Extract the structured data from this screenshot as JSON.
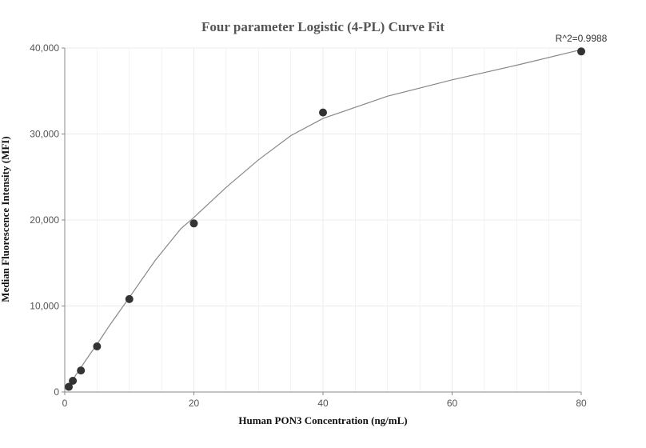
{
  "chart_data": {
    "type": "scatter",
    "title": "Four parameter Logistic (4-PL) Curve Fit",
    "xlabel": "Human PON3 Concentration (ng/mL)",
    "ylabel": "Median Fluorescence Intensity (MFI)",
    "xlim": [
      0,
      80
    ],
    "ylim": [
      0,
      40000
    ],
    "x_ticks": [
      0,
      20,
      40,
      60,
      80
    ],
    "x_tick_labels": [
      "0",
      "20",
      "40",
      "60",
      "80"
    ],
    "y_ticks": [
      0,
      10000,
      20000,
      30000,
      40000
    ],
    "y_tick_labels": [
      "0",
      "10,000",
      "20,000",
      "30,000",
      "40,000"
    ],
    "grid": true,
    "points": {
      "x": [
        0.625,
        1.25,
        2.5,
        5,
        10,
        20,
        40,
        80
      ],
      "y": [
        600,
        1300,
        2500,
        5300,
        10800,
        19600,
        32500,
        39600
      ]
    },
    "fit_curve": {
      "x": [
        0.5,
        1,
        2,
        3,
        4,
        5,
        7,
        10,
        14,
        18,
        20,
        25,
        30,
        35,
        40,
        50,
        60,
        70,
        80
      ],
      "y": [
        550,
        1150,
        2300,
        3400,
        4500,
        5550,
        7800,
        11000,
        15300,
        19000,
        20300,
        23800,
        27000,
        29800,
        31800,
        34400,
        36300,
        38000,
        39800
      ]
    },
    "annotation": "R^2=0.9988",
    "colors": {
      "points": "#333333",
      "curve": "#888888",
      "grid": "#ebebeb",
      "axis": "#888888"
    }
  }
}
